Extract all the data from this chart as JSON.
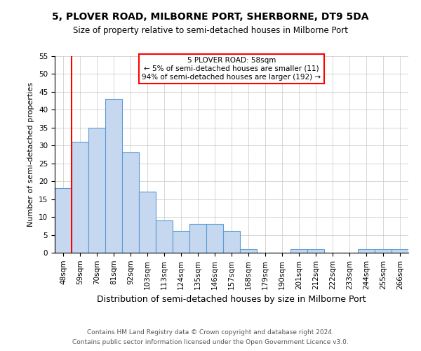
{
  "title1": "5, PLOVER ROAD, MILBORNE PORT, SHERBORNE, DT9 5DA",
  "title2": "Size of property relative to semi-detached houses in Milborne Port",
  "xlabel": "Distribution of semi-detached houses by size in Milborne Port",
  "ylabel": "Number of semi-detached properties",
  "footnote1": "Contains HM Land Registry data © Crown copyright and database right 2024.",
  "footnote2": "Contains public sector information licensed under the Open Government Licence v3.0.",
  "categories": [
    "48sqm",
    "59sqm",
    "70sqm",
    "81sqm",
    "92sqm",
    "103sqm",
    "113sqm",
    "124sqm",
    "135sqm",
    "146sqm",
    "157sqm",
    "168sqm",
    "179sqm",
    "190sqm",
    "201sqm",
    "212sqm",
    "222sqm",
    "233sqm",
    "244sqm",
    "255sqm",
    "266sqm"
  ],
  "values": [
    18,
    31,
    35,
    43,
    28,
    17,
    9,
    6,
    8,
    8,
    6,
    1,
    0,
    0,
    1,
    1,
    0,
    0,
    1,
    1,
    1
  ],
  "bar_color": "#c5d8f0",
  "bar_edge_color": "#5b9bd5",
  "red_line_index": 1,
  "annotation_title": "5 PLOVER ROAD: 58sqm",
  "annotation_line1": "← 5% of semi-detached houses are smaller (11)",
  "annotation_line2": "94% of semi-detached houses are larger (192) →",
  "annotation_box_color": "white",
  "annotation_box_edge_color": "red",
  "red_line_color": "red",
  "ylim": [
    0,
    55
  ],
  "yticks": [
    0,
    5,
    10,
    15,
    20,
    25,
    30,
    35,
    40,
    45,
    50,
    55
  ],
  "background_color": "white",
  "grid_color": "#c8c8c8",
  "title1_fontsize": 10,
  "title2_fontsize": 8.5,
  "xlabel_fontsize": 9,
  "ylabel_fontsize": 8,
  "tick_fontsize": 7.5,
  "annotation_fontsize": 7.5,
  "footnote_fontsize": 6.5
}
